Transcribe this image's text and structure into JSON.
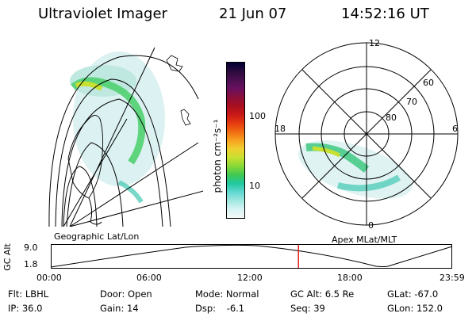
{
  "header": {
    "instrument": "Ultraviolet Imager",
    "date": "21 Jun 07",
    "time": "14:52:16 UT"
  },
  "geo_panel": {
    "label": "Geographic Lat/Lon"
  },
  "apex_panel": {
    "label": "Apex MLat/MLT",
    "mlt_labels": [
      "12",
      "18",
      "6",
      "0"
    ],
    "lat_labels": [
      "60",
      "70",
      "80"
    ]
  },
  "colorbar": {
    "unit_label": "photon cm⁻²s⁻¹",
    "ticks": [
      "100",
      "10"
    ],
    "colors": [
      "#000033",
      "#2b0a3d",
      "#4a1050",
      "#6a1060",
      "#8a0f3a",
      "#a80f20",
      "#c81818",
      "#e43a10",
      "#f06a10",
      "#f7a020",
      "#f0d030",
      "#c8e030",
      "#88d838",
      "#40c850",
      "#20c8a0",
      "#60d8d0",
      "#a0e8e0",
      "#d8f4f4",
      "#f4f8f8"
    ]
  },
  "timeline": {
    "axis_label": "GC Alt",
    "y_ticks": [
      "9.0",
      "1.8"
    ],
    "x_ticks": [
      "00:00",
      "06:00",
      "12:00",
      "18:00",
      "23:59"
    ],
    "current_time_fraction": 0.617
  },
  "status": {
    "row1": [
      {
        "label": "Flt:",
        "value": "LBHL"
      },
      {
        "label": "Door:",
        "value": "Open"
      },
      {
        "label": "Mode:",
        "value": "Normal"
      },
      {
        "label": "GC Alt:",
        "value": "6.5 Re"
      },
      {
        "label": "GLat:",
        "value": "-67.0"
      }
    ],
    "row2": [
      {
        "label": "IP:",
        "value": "36.0"
      },
      {
        "label": "Gain:",
        "value": "14"
      },
      {
        "label": "Dsp:",
        "value": "-6.1"
      },
      {
        "label": "Seq:",
        "value": "39"
      },
      {
        "label": "GLon:",
        "value": "152.0"
      }
    ]
  }
}
